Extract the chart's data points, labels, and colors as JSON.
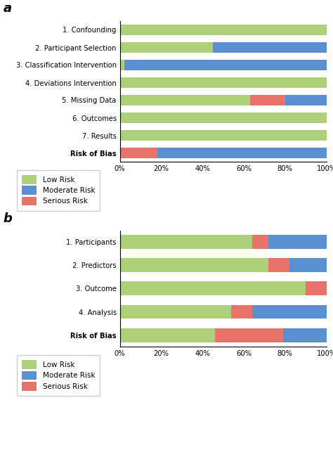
{
  "chart_a": {
    "categories": [
      "1. Confounding",
      "2. Participant Selection",
      "3. Classification Intervention",
      "4. Deviations Intervention",
      "5. Missing Data",
      "6. Outcomes",
      "7. Results",
      "Risk of Bias"
    ],
    "low_risk": [
      100,
      45,
      2,
      100,
      63,
      100,
      100,
      0
    ],
    "serious_risk": [
      0,
      0,
      0,
      0,
      17,
      0,
      0,
      18
    ],
    "moderate_risk": [
      0,
      55,
      98,
      0,
      20,
      0,
      0,
      82
    ]
  },
  "chart_b": {
    "categories": [
      "1. Participants",
      "2. Predictors",
      "3. Outcome",
      "4. Analysis",
      "Risk of Bias"
    ],
    "low_risk": [
      64,
      72,
      90,
      54,
      46
    ],
    "serious_risk": [
      8,
      10,
      10,
      10,
      33
    ],
    "moderate_risk": [
      28,
      18,
      0,
      36,
      21
    ]
  },
  "colors": {
    "low_risk": "#afd07a",
    "moderate_risk": "#5b8fcf",
    "serious_risk": "#e8736a"
  },
  "label_a": "a",
  "label_b": "b"
}
